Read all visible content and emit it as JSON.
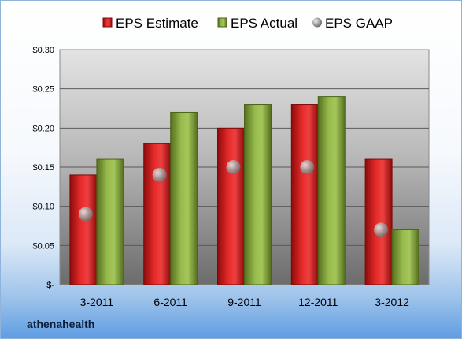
{
  "company": "athenahealth",
  "chart_data": {
    "type": "bar",
    "categories": [
      "3-2011",
      "6-2011",
      "9-2011",
      "12-2011",
      "3-2012"
    ],
    "series": [
      {
        "name": "EPS Estimate",
        "kind": "bar",
        "color": "#d11a1a",
        "values": [
          0.14,
          0.18,
          0.2,
          0.23,
          0.16
        ]
      },
      {
        "name": "EPS Actual",
        "kind": "bar",
        "color": "#86a83d",
        "values": [
          0.16,
          0.22,
          0.23,
          0.24,
          0.07
        ]
      },
      {
        "name": "EPS GAAP",
        "kind": "scatter",
        "color": "#a9a9a9",
        "values": [
          0.09,
          0.14,
          0.15,
          0.15,
          0.07
        ]
      }
    ],
    "yticks": [
      "$-",
      "$0.05",
      "$0.10",
      "$0.15",
      "$0.20",
      "$0.25",
      "$0.30"
    ],
    "ylim": [
      0,
      0.3
    ],
    "grid": true,
    "legend": "top"
  }
}
